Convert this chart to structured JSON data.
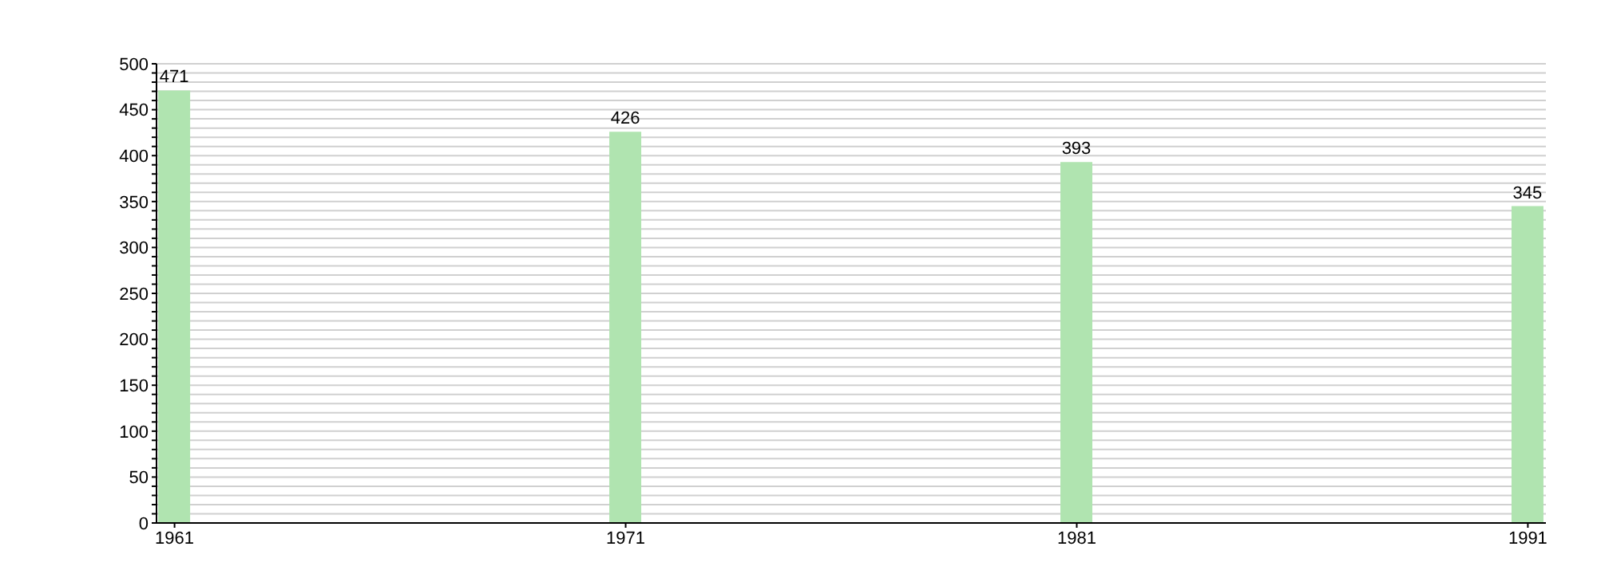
{
  "chart_data": {
    "type": "bar",
    "x": [
      1961,
      1971,
      1981,
      1991
    ],
    "values": [
      471,
      426,
      393,
      345
    ],
    "color": "#b0e4b0",
    "data_labels": true,
    "xlim": [
      1960.6,
      1991.4
    ],
    "xticks": [
      1961,
      1971,
      1981,
      1991
    ],
    "ylim": [
      0,
      500
    ],
    "yticks": [
      0,
      {
        "value": 10,
        "label": null
      },
      {
        "value": 20,
        "label": null
      },
      {
        "value": 30,
        "label": null
      },
      {
        "value": 40,
        "label": null
      },
      50,
      {
        "value": 60,
        "label": null
      },
      {
        "value": 70,
        "label": null
      },
      {
        "value": 80,
        "label": null
      },
      {
        "value": 90,
        "label": null
      },
      100,
      {
        "value": 110,
        "label": null
      },
      {
        "value": 120,
        "label": null
      },
      {
        "value": 130,
        "label": null
      },
      {
        "value": 140,
        "label": null
      },
      150,
      {
        "value": 160,
        "label": null
      },
      {
        "value": 170,
        "label": null
      },
      {
        "value": 180,
        "label": null
      },
      {
        "value": 190,
        "label": null
      },
      200,
      {
        "value": 210,
        "label": null
      },
      {
        "value": 220,
        "label": null
      },
      {
        "value": 230,
        "label": null
      },
      {
        "value": 240,
        "label": null
      },
      250,
      {
        "value": 260,
        "label": null
      },
      {
        "value": 270,
        "label": null
      },
      {
        "value": 280,
        "label": null
      },
      {
        "value": 290,
        "label": null
      },
      300,
      {
        "value": 310,
        "label": null
      },
      {
        "value": 320,
        "label": null
      },
      {
        "value": 330,
        "label": null
      },
      {
        "value": 340,
        "label": null
      },
      350,
      {
        "value": 360,
        "label": null
      },
      {
        "value": 370,
        "label": null
      },
      {
        "value": 380,
        "label": null
      },
      {
        "value": 390,
        "label": null
      },
      400,
      {
        "value": 410,
        "label": null
      },
      {
        "value": 420,
        "label": null
      },
      {
        "value": 430,
        "label": null
      },
      {
        "value": 440,
        "label": null
      },
      450,
      {
        "value": 460,
        "label": null
      },
      {
        "value": 470,
        "label": null
      },
      {
        "value": 480,
        "label": null
      },
      {
        "value": 490,
        "label": null
      },
      500
    ],
    "grid": "y"
  }
}
